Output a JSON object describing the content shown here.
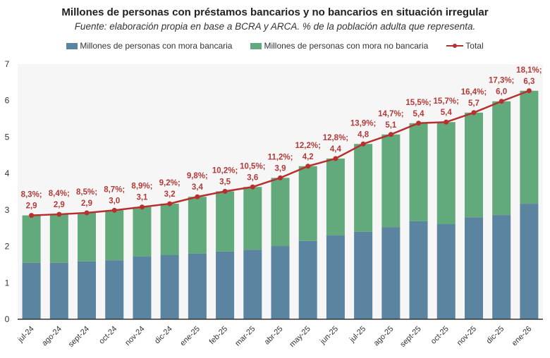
{
  "chart_data": {
    "type": "bar",
    "stacked": true,
    "title": "Millones de personas con préstamos bancarios y no bancarios en situación irregular",
    "subtitle": "Fuente: elaboración propia en base a BCRA y ARCA. % de la población adulta que representa.",
    "legend_position": "top",
    "ylim": [
      0,
      7
    ],
    "yticks": [
      0,
      1,
      2,
      3,
      4,
      5,
      6,
      7
    ],
    "grid": false,
    "categories": [
      "jul-24",
      "ago-24",
      "sept-24",
      "oct-24",
      "nov-24",
      "dic-24",
      "ene-25",
      "feb-25",
      "mar-25",
      "abr-25",
      "may-25",
      "jun-25",
      "jul-25",
      "ago-25",
      "sept-25",
      "oct-25",
      "nov-25",
      "dic-25",
      "ene-26"
    ],
    "series": [
      {
        "name": "Millones de personas con mora bancaria",
        "color": "#5b84a1",
        "values": [
          1.55,
          1.55,
          1.59,
          1.62,
          1.72,
          1.76,
          1.8,
          1.86,
          1.91,
          2.01,
          2.15,
          2.3,
          2.4,
          2.53,
          2.69,
          2.61,
          2.8,
          2.86,
          3.17
        ]
      },
      {
        "name": "Millones de personas con mora no bancaria",
        "color": "#62a97b",
        "values": [
          1.3,
          1.33,
          1.33,
          1.37,
          1.36,
          1.41,
          1.56,
          1.65,
          1.72,
          1.87,
          2.05,
          2.11,
          2.41,
          2.54,
          2.69,
          2.8,
          2.87,
          3.12,
          3.1
        ]
      },
      {
        "name": "Total",
        "type": "line",
        "color": "#b8302e",
        "values": [
          2.85,
          2.88,
          2.92,
          2.99,
          3.08,
          3.17,
          3.36,
          3.51,
          3.63,
          3.88,
          4.2,
          4.41,
          4.81,
          5.07,
          5.38,
          5.41,
          5.67,
          5.98,
          6.27
        ]
      }
    ],
    "data_labels": {
      "color": "#b23a38",
      "percent": [
        "8,3%;",
        "8,4%;",
        "8,5%;",
        "8,7%;",
        "8,9%;",
        "9,2%;",
        "9,8%;",
        "10,2%;",
        "10,5%;",
        "11,2%;",
        "12,2%;",
        "12,8%;",
        "13,9%;",
        "14,7%;",
        "15,5%;",
        "15,7%;",
        "16,4%;",
        "17,3%;",
        "18,1%;"
      ],
      "total": [
        "2,9",
        "2,9",
        "2,9",
        "3,0",
        "3,1",
        "3,2",
        "3,4",
        "3,5",
        "3,6",
        "3,9",
        "4,2",
        "4,4",
        "4,8",
        "5,1",
        "5,4",
        "5,4",
        "5,7",
        "6,0",
        "6,3"
      ]
    }
  }
}
